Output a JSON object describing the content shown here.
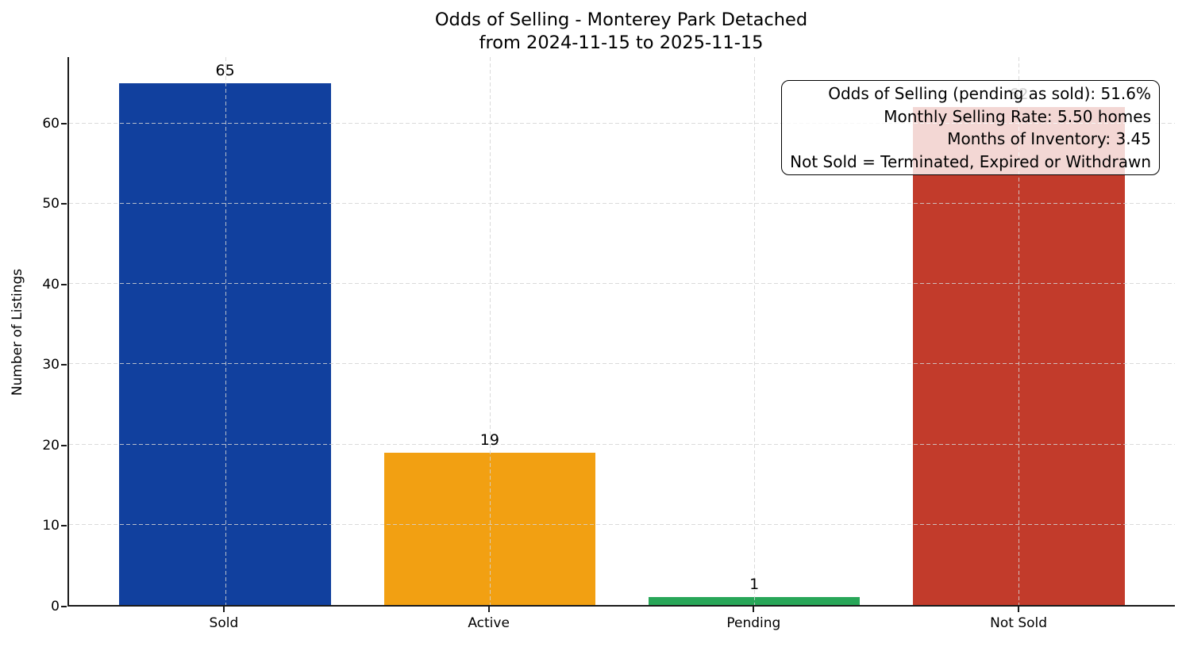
{
  "chart_data": {
    "type": "bar",
    "title_lines": [
      "Odds of Selling - Monterey Park Detached",
      "from 2024-11-15 to 2025-11-15"
    ],
    "xlabel": "",
    "ylabel": "Number of Listings",
    "categories": [
      "Sold",
      "Active",
      "Pending",
      "Not Sold"
    ],
    "values": [
      65,
      19,
      1,
      62
    ],
    "value_labels": [
      "65",
      "19",
      "1",
      "62"
    ],
    "bar_colors": [
      "#11409e",
      "#f2a012",
      "#28a658",
      "#c23b2b"
    ],
    "yticks": [
      0,
      10,
      20,
      30,
      40,
      50,
      60
    ],
    "ylim": [
      0,
      68.25
    ],
    "xlim": [
      -0.59,
      3.59
    ],
    "bar_width": 0.8,
    "grid": {
      "axis": "both",
      "style": "dashed",
      "color": "#d3d3d3",
      "above_bars": true
    },
    "legend": null,
    "annotation": {
      "position": "top-right",
      "align": "right",
      "background": "rgba(255,255,255,0.8)",
      "border_color": "#000000",
      "lines": [
        "Odds of Selling (pending as sold): 51.6%",
        "Monthly Selling Rate: 5.50 homes",
        "Months of Inventory: 3.45",
        "Not Sold = Terminated, Expired or Withdrawn"
      ]
    }
  }
}
